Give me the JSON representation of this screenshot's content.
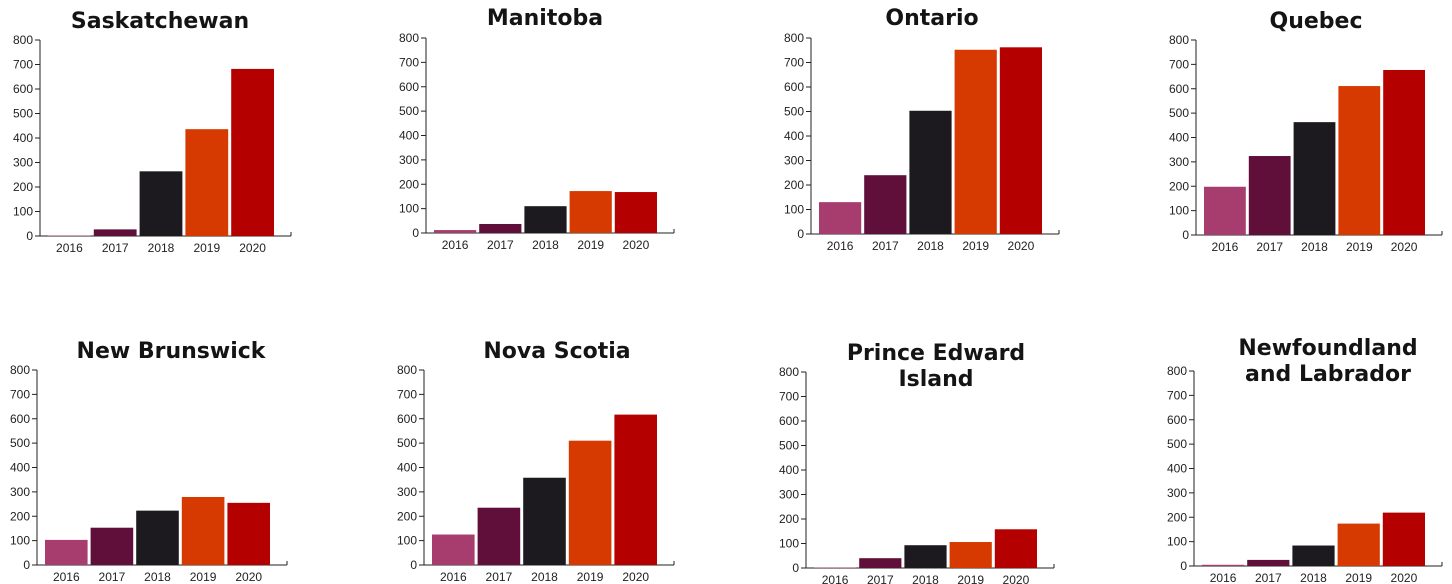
{
  "colors": {
    "2016": "#a63d6e",
    "2017": "#5f0f3a",
    "2018": "#1c1a1e",
    "2019": "#d63a00",
    "2020": "#b50000"
  },
  "chart_data": [
    {
      "type": "bar",
      "title": [
        "Saskatchewan"
      ],
      "categories": [
        "2016",
        "2017",
        "2018",
        "2019",
        "2020"
      ],
      "values": [
        2,
        27,
        264,
        436,
        682
      ],
      "ylim": [
        0,
        800
      ],
      "yticks": [
        "0",
        "100",
        "200",
        "300",
        "400",
        "500",
        "600",
        "700",
        "800"
      ],
      "grid": false
    },
    {
      "type": "bar",
      "title": [
        "Manitoba"
      ],
      "categories": [
        "2016",
        "2017",
        "2018",
        "2019",
        "2020"
      ],
      "values": [
        12,
        37,
        110,
        172,
        168
      ],
      "ylim": [
        0,
        800
      ],
      "yticks": [
        "0",
        "100",
        "200",
        "300",
        "400",
        "500",
        "600",
        "700",
        "800"
      ],
      "grid": false
    },
    {
      "type": "bar",
      "title": [
        "Ontario"
      ],
      "categories": [
        "2016",
        "2017",
        "2018",
        "2019",
        "2020"
      ],
      "values": [
        130,
        240,
        503,
        752,
        762
      ],
      "ylim": [
        0,
        800
      ],
      "yticks": [
        "0",
        "100",
        "200",
        "300",
        "400",
        "500",
        "600",
        "700",
        "800"
      ],
      "grid": false
    },
    {
      "type": "bar",
      "title": [
        "Quebec"
      ],
      "categories": [
        "2016",
        "2017",
        "2018",
        "2019",
        "2020"
      ],
      "values": [
        198,
        324,
        463,
        611,
        677
      ],
      "ylim": [
        0,
        800
      ],
      "yticks": [
        "0",
        "100",
        "200",
        "300",
        "400",
        "500",
        "600",
        "700",
        "800"
      ],
      "grid": false
    },
    {
      "type": "bar",
      "title": [
        "New Brunswick"
      ],
      "categories": [
        "2016",
        "2017",
        "2018",
        "2019",
        "2020"
      ],
      "values": [
        103,
        153,
        223,
        279,
        255
      ],
      "ylim": [
        0,
        800
      ],
      "yticks": [
        "0",
        "100",
        "200",
        "300",
        "400",
        "500",
        "600",
        "700",
        "800"
      ],
      "grid": false
    },
    {
      "type": "bar",
      "title": [
        "Nova Scotia"
      ],
      "categories": [
        "2016",
        "2017",
        "2018",
        "2019",
        "2020"
      ],
      "values": [
        125,
        235,
        358,
        510,
        617
      ],
      "ylim": [
        0,
        800
      ],
      "yticks": [
        "0",
        "100",
        "200",
        "300",
        "400",
        "500",
        "600",
        "700",
        "800"
      ],
      "grid": false
    },
    {
      "type": "bar",
      "title": [
        "Prince Edward",
        "Island"
      ],
      "categories": [
        "2016",
        "2017",
        "2018",
        "2019",
        "2020"
      ],
      "values": [
        2,
        40,
        93,
        106,
        158
      ],
      "ylim": [
        0,
        800
      ],
      "yticks": [
        "0",
        "100",
        "200",
        "300",
        "400",
        "500",
        "600",
        "700",
        "800"
      ],
      "grid": false
    },
    {
      "type": "bar",
      "title": [
        "Newfoundland",
        "and Labrador"
      ],
      "categories": [
        "2016",
        "2017",
        "2018",
        "2019",
        "2020"
      ],
      "values": [
        5,
        25,
        84,
        174,
        219
      ],
      "ylim": [
        0,
        800
      ],
      "yticks": [
        "0",
        "100",
        "200",
        "300",
        "400",
        "500",
        "600",
        "700",
        "800"
      ],
      "grid": false
    }
  ]
}
